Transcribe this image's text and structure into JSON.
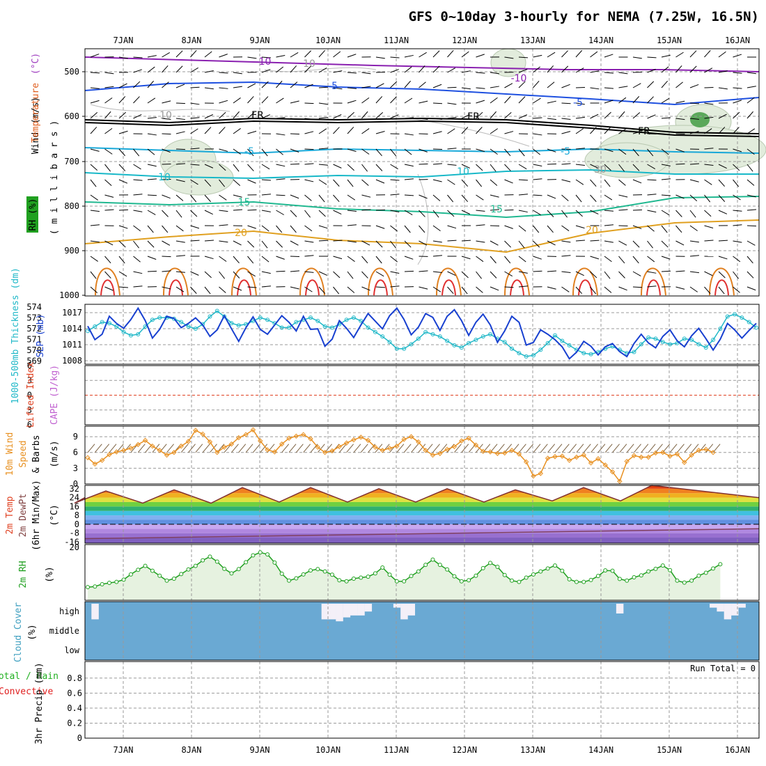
{
  "title": "GFS 0~10day 3-hourly for NEMA (7.25W, 16.5N)",
  "dates": [
    "7JAN",
    "8JAN",
    "9JAN",
    "10JAN",
    "11JAN",
    "12JAN",
    "13JAN",
    "14JAN",
    "15JAN",
    "16JAN"
  ],
  "colors": {
    "wind_label": "#000000",
    "temp_label": "#a040c0",
    "temp_label2": "#e06020",
    "rh_box": "#20a020",
    "slp": "#1840d0",
    "thick": "#20b8c8",
    "lifted": "#e04020",
    "cape": "#c060d0",
    "wind10": "#e89020",
    "rh2m": "#20a020",
    "cloud": "#6aa9d3",
    "cloud_label": "#40a0c0",
    "precip_total": "#20b020",
    "precip_conv": "#e02020"
  },
  "panels": {
    "upper": {
      "ylabel_parts": [
        "Wind",
        "(m/s)",
        "Temperature",
        "(°C)",
        "RH (%)"
      ],
      "ylabel2": "( m i l l i b a r s )",
      "yticks": [
        "500",
        "600",
        "700",
        "800",
        "900",
        "1000"
      ],
      "contour_labels": [
        "-10",
        "-10",
        "-5",
        "-5",
        "FR",
        "FR",
        "FR",
        "-5",
        "-5",
        "10",
        "10",
        "-15",
        "15",
        "20",
        "20",
        "10",
        "10",
        "30"
      ]
    },
    "slp": {
      "ylabel_left": "1000-500mb Thickness (dm)",
      "ylabel_right": "SLP (mb)",
      "yticks_left": [
        "574",
        "573",
        "572",
        "571",
        "570",
        "569"
      ],
      "yticks_right": [
        "1017",
        "1014",
        "1011",
        "1008"
      ]
    },
    "li": {
      "ylabel_left": "Lifted Index",
      "ylabel_right": "CAPE (J/kg)",
      "yticks": [
        "6",
        "3",
        "0",
        "3",
        "6"
      ]
    },
    "wind10": {
      "ylabel_a": "10m Wind",
      "ylabel_b": "Speed",
      "ylabel_c": "& Barbs",
      "ylabel_unit": "(m/s)",
      "yticks": [
        "9",
        "6",
        "3",
        "0"
      ]
    },
    "temp2m": {
      "ylabel_a": "2m Temp",
      "ylabel_b": "2m DewPt",
      "ylabel_c": "(6hr Min/Max)",
      "ylabel_unit": "(°C)",
      "yticks": [
        "32",
        "24",
        "16",
        "8",
        "0",
        "-8",
        "-16"
      ]
    },
    "rh2m": {
      "ylabel": "2m RH",
      "ylabel_unit": "(%)",
      "ytick_top": "20"
    },
    "cloud": {
      "ylabel": "Cloud Cover",
      "ylabel_unit": "(%)",
      "levels": [
        "high",
        "middle",
        "low"
      ]
    },
    "precip": {
      "ylabel_a": "Total / Rain",
      "ylabel_b": "Convective",
      "ylabel_c": "3hr Precip (mm)",
      "yticks": [
        "0.8",
        "0.6",
        "0.4",
        "0.2",
        "0"
      ],
      "run_total": "Run Total = 0"
    }
  },
  "chart_data": [
    {
      "type": "line",
      "name": "SLP (mb)",
      "x_step_hours": 3,
      "x_start": "6JAN 12Z",
      "ylim": [
        1007,
        1018
      ],
      "values": [
        1014,
        1011.5,
        1012.5,
        1015.8,
        1014.5,
        1013.6,
        1015.2,
        1017.3,
        1015,
        1011.8,
        1013.4,
        1015.8,
        1015.4,
        1013.7,
        1014.5,
        1015.5,
        1014.2,
        1012.1,
        1013.3,
        1015.9,
        1013.5,
        1011.2,
        1013.7,
        1015.7,
        1013.4,
        1012.5,
        1014.2,
        1015.9,
        1014.7,
        1013.1,
        1015.8,
        1013.4,
        1013.5,
        1010.3,
        1011.6,
        1015,
        1013.6,
        1011.9,
        1014.2,
        1016.3,
        1014.9,
        1013.5,
        1015.9,
        1017.3,
        1015.2,
        1012.4,
        1013.8,
        1016.3,
        1015.6,
        1013.2,
        1015.8,
        1017,
        1015,
        1012.3,
        1014.7,
        1016.2,
        1014.2,
        1011,
        1013.1,
        1015.8,
        1014.7,
        1010.5,
        1011,
        1013.3,
        1012.5,
        1011.5,
        1010.2,
        1008,
        1009.2,
        1011.2,
        1010.3,
        1008.7,
        1010.2,
        1010.8,
        1009.3,
        1008.4,
        1010.8,
        1012.5,
        1010.9,
        1010,
        1012.1,
        1013.3,
        1011.3,
        1010.2,
        1012.2,
        1013.6,
        1011.7,
        1009.6,
        1011.6,
        1014.5,
        1013.3,
        1011.8,
        1013.2,
        1014.5
      ]
    },
    {
      "type": "line",
      "name": "1000-500mb Thickness (dm)",
      "x_step_hours": 3,
      "x_start": "6JAN 12Z",
      "ylim": [
        568.8,
        574.2
      ],
      "values": [
        571.8,
        572.2,
        572.6,
        572.5,
        572.2,
        571.7,
        571.4,
        571.5,
        572.2,
        572.8,
        573,
        573,
        572.9,
        572.6,
        572.2,
        572,
        572.4,
        573.1,
        573.6,
        573.1,
        572.5,
        572.3,
        572.4,
        572.7,
        573,
        572.8,
        572.5,
        572.1,
        572.1,
        572.6,
        572.8,
        573,
        572.7,
        572.2,
        572.1,
        572.4,
        572.8,
        573,
        572.7,
        572.1,
        571.7,
        571.3,
        570.8,
        570.2,
        570.2,
        570.6,
        571.1,
        571.7,
        571.5,
        571.3,
        570.9,
        570.5,
        570.3,
        570.7,
        571,
        571.3,
        571.5,
        571.1,
        570.8,
        570.2,
        569.8,
        569.5,
        569.6,
        570.1,
        570.7,
        571.4,
        570.9,
        570.5,
        570.1,
        569.8,
        569.7,
        569.9,
        570.2,
        570.4,
        570.1,
        569.8,
        569.9,
        570.6,
        571.2,
        571.1,
        570.8,
        570.6,
        570.7,
        571.1,
        571,
        570.6,
        570.3,
        571,
        572,
        573.1,
        573.3,
        573,
        572.6,
        572.1
      ]
    },
    {
      "type": "line",
      "name": "10m Wind Speed (m/s)",
      "x_step_hours": 3,
      "x_start": "6JAN 12Z",
      "ylim": [
        0,
        11
      ],
      "values": [
        5,
        3.8,
        4.5,
        5.6,
        6.1,
        6.4,
        6.8,
        7.5,
        8.3,
        7.2,
        6.4,
        5.5,
        6,
        7.2,
        8.1,
        10.2,
        9.5,
        8,
        6,
        7,
        7.6,
        8.8,
        9.4,
        10.3,
        8.2,
        6.5,
        6.1,
        7.6,
        8.7,
        9.1,
        9.4,
        8.6,
        7,
        6,
        6.3,
        7.1,
        7.8,
        8.4,
        8.9,
        8.3,
        7,
        6.4,
        6.8,
        7.2,
        8.5,
        9,
        8,
        6.4,
        5.5,
        5.8,
        6.6,
        7.1,
        8.2,
        8.7,
        7.4,
        6.2,
        6.1,
        5.8,
        5.9,
        6.4,
        5.7,
        4.2,
        1.5,
        2,
        4.9,
        5.2,
        5.3,
        4.5,
        5.1,
        5.5,
        4,
        4.8,
        3.6,
        2.3,
        0.5,
        4.3,
        5.4,
        5.1,
        5.1,
        5.9,
        6,
        5.3,
        5.7,
        4.1,
        5.5,
        6.4,
        6.6,
        6
      ]
    },
    {
      "type": "area",
      "name": "2m Temp (°C)",
      "ylim": [
        -17,
        35
      ],
      "daily_max": [
        30,
        31,
        33,
        33,
        32,
        32,
        31,
        33,
        35
      ],
      "daily_min": [
        19,
        19,
        19,
        20,
        20,
        20,
        20,
        21,
        21
      ]
    },
    {
      "type": "area",
      "name": "2m RH (%)",
      "x_step_hours": 3,
      "x_start": "6JAN 12Z",
      "ylim": [
        4,
        21
      ],
      "values": [
        8,
        8.2,
        8.9,
        9.3,
        9.6,
        10.3,
        11.9,
        13.3,
        14.5,
        13,
        11.5,
        10,
        10.6,
        12,
        13.4,
        14.5,
        16.2,
        17.3,
        15.8,
        13.6,
        12.2,
        13.5,
        15.6,
        17.7,
        18.6,
        18,
        15.5,
        12.1,
        10,
        10.7,
        11.9,
        13.1,
        13.5,
        12.8,
        11.8,
        10.1,
        9.8,
        10.6,
        10.9,
        11.2,
        12.2,
        14,
        11.8,
        9.8,
        9.8,
        11.4,
        12.8,
        14.8,
        16.4,
        14.8,
        13.4,
        11.3,
        9.8,
        10.1,
        11.5,
        13.8,
        15.4,
        14.2,
        11.7,
        10,
        9.6,
        10.9,
        11.9,
        12.8,
        13.7,
        14.6,
        13,
        10.4,
        9.6,
        9.6,
        10.2,
        11.4,
        13.1,
        13,
        10.5,
        10,
        11,
        11.6,
        12.8,
        13.6,
        14.6,
        13.2,
        10,
        9.4,
        10,
        11.5,
        12.4,
        13.7,
        15
      ]
    },
    {
      "type": "bar",
      "name": "Cloud Cover high (%)",
      "x_step_hours": 3,
      "x_start": "6JAN 12Z",
      "ylim": [
        0,
        100
      ],
      "values": [
        0,
        80,
        0,
        0,
        0,
        0,
        0,
        0,
        0,
        0,
        0,
        0,
        0,
        0,
        0,
        0,
        0,
        0,
        0,
        0,
        0,
        0,
        0,
        0,
        0,
        0,
        0,
        0,
        0,
        0,
        0,
        0,
        0,
        80,
        80,
        90,
        70,
        60,
        60,
        40,
        0,
        0,
        0,
        20,
        80,
        60,
        0,
        0,
        0,
        0,
        0,
        0,
        0,
        0,
        0,
        0,
        0,
        0,
        0,
        0,
        0,
        0,
        0,
        0,
        0,
        0,
        0,
        0,
        0,
        0,
        0,
        0,
        0,
        0,
        50,
        0,
        0,
        0,
        0,
        0,
        0,
        0,
        0,
        0,
        0,
        0,
        0,
        20,
        40,
        80,
        60,
        20,
        0,
        0
      ]
    },
    {
      "type": "bar",
      "name": "3hr Precip (mm)",
      "ylim": [
        0,
        1
      ],
      "values": [
        0
      ]
    }
  ]
}
